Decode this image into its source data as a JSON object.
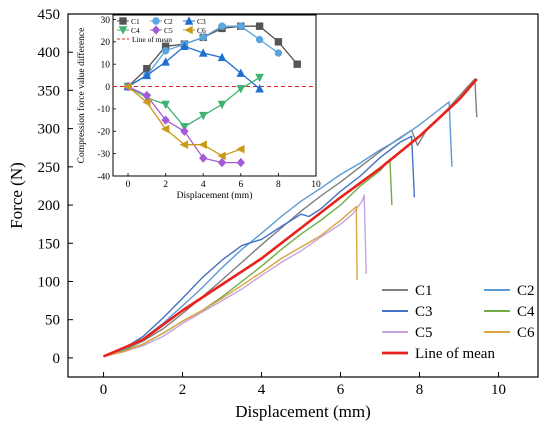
{
  "chart_data": [
    {
      "type": "line",
      "xlabel": "Displacement (mm)",
      "ylabel": "Force (N)",
      "xlim": [
        -0.9,
        11
      ],
      "ylim": [
        -25,
        450
      ],
      "xticks": [
        0,
        2,
        4,
        6,
        8,
        10
      ],
      "yticks": [
        0,
        50,
        100,
        150,
        200,
        250,
        300,
        350,
        400,
        450
      ],
      "grid": false,
      "legend_position": "bottom-right",
      "series": [
        {
          "name": "C1",
          "color": "#808080",
          "points": [
            [
              0,
              2
            ],
            [
              0.5,
              10
            ],
            [
              1,
              22
            ],
            [
              1.5,
              38
            ],
            [
              2,
              58
            ],
            [
              2.5,
              80
            ],
            [
              3,
              102
            ],
            [
              3.5,
              125
            ],
            [
              4,
              148
            ],
            [
              4.5,
              170
            ],
            [
              5,
              192
            ],
            [
              5.5,
              212
            ],
            [
              6,
              230
            ],
            [
              6.5,
              250
            ],
            [
              7,
              270
            ],
            [
              7.5,
              288
            ],
            [
              7.8,
              298
            ],
            [
              7.95,
              278
            ],
            [
              8.2,
              300
            ],
            [
              8.7,
              325
            ],
            [
              9.1,
              348
            ],
            [
              9.4,
              365
            ],
            [
              9.45,
              315
            ]
          ]
        },
        {
          "name": "C2",
          "color": "#5b9bd5",
          "points": [
            [
              0,
              2
            ],
            [
              0.5,
              11
            ],
            [
              1,
              25
            ],
            [
              1.5,
              45
            ],
            [
              2,
              68
            ],
            [
              2.5,
              92
            ],
            [
              3,
              118
            ],
            [
              3.5,
              142
            ],
            [
              4,
              163
            ],
            [
              4.5,
              185
            ],
            [
              5,
              205
            ],
            [
              5.5,
              222
            ],
            [
              6,
              240
            ],
            [
              6.5,
              255
            ],
            [
              7,
              272
            ],
            [
              7.5,
              287
            ],
            [
              8,
              305
            ],
            [
              8.5,
              325
            ],
            [
              8.75,
              335
            ],
            [
              8.82,
              250
            ]
          ]
        },
        {
          "name": "C3",
          "color": "#4472c4",
          "points": [
            [
              0,
              2
            ],
            [
              0.5,
              12
            ],
            [
              1,
              28
            ],
            [
              1.5,
              52
            ],
            [
              2,
              78
            ],
            [
              2.5,
              105
            ],
            [
              3,
              128
            ],
            [
              3.5,
              147
            ],
            [
              3.8,
              152
            ],
            [
              4,
              155
            ],
            [
              4.5,
              172
            ],
            [
              5,
              188
            ],
            [
              5.2,
              185
            ],
            [
              5.5,
              195
            ],
            [
              6,
              218
            ],
            [
              6.5,
              238
            ],
            [
              7,
              262
            ],
            [
              7.5,
              282
            ],
            [
              7.8,
              290
            ],
            [
              7.87,
              210
            ]
          ]
        },
        {
          "name": "C4",
          "color": "#70ad47",
          "points": [
            [
              0,
              2
            ],
            [
              0.5,
              9
            ],
            [
              1,
              18
            ],
            [
              1.5,
              32
            ],
            [
              2,
              48
            ],
            [
              2.5,
              62
            ],
            [
              3,
              80
            ],
            [
              3.5,
              100
            ],
            [
              4,
              120
            ],
            [
              4.5,
              142
            ],
            [
              5,
              162
            ],
            [
              5.5,
              180
            ],
            [
              6,
              200
            ],
            [
              6.5,
              225
            ],
            [
              7,
              245
            ],
            [
              7.25,
              260
            ],
            [
              7.3,
              200
            ]
          ]
        },
        {
          "name": "C5",
          "color": "#c5a3e0",
          "points": [
            [
              0,
              2
            ],
            [
              0.5,
              8
            ],
            [
              1,
              16
            ],
            [
              1.5,
              28
            ],
            [
              2,
              45
            ],
            [
              2.5,
              60
            ],
            [
              3,
              75
            ],
            [
              3.5,
              90
            ],
            [
              4,
              108
            ],
            [
              4.5,
              125
            ],
            [
              5,
              140
            ],
            [
              5.5,
              158
            ],
            [
              6,
              175
            ],
            [
              6.3,
              188
            ],
            [
              6.55,
              205
            ],
            [
              6.6,
              213
            ],
            [
              6.65,
              110
            ]
          ]
        },
        {
          "name": "C6",
          "color": "#d9a441",
          "points": [
            [
              0,
              2
            ],
            [
              0.5,
              8
            ],
            [
              1,
              18
            ],
            [
              1.5,
              32
            ],
            [
              2,
              48
            ],
            [
              2.5,
              62
            ],
            [
              3,
              78
            ],
            [
              3.5,
              95
            ],
            [
              4,
              112
            ],
            [
              4.5,
              130
            ],
            [
              5,
              145
            ],
            [
              5.5,
              160
            ],
            [
              6,
              180
            ],
            [
              6.4,
              198
            ],
            [
              6.42,
              102
            ]
          ]
        },
        {
          "name": "Line of mean",
          "color": "#e8221c",
          "points": [
            [
              0,
              2
            ],
            [
              1,
              24
            ],
            [
              2,
              62
            ],
            [
              3,
              96
            ],
            [
              4,
              130
            ],
            [
              5,
              170
            ],
            [
              6,
              210
            ],
            [
              7,
              248
            ],
            [
              8,
              290
            ],
            [
              9,
              338
            ],
            [
              9.45,
              365
            ]
          ]
        }
      ]
    },
    {
      "type": "line",
      "xlabel": "Displacement (mm)",
      "ylabel": "Compression force value difference",
      "xlim": [
        -0.8,
        10
      ],
      "ylim": [
        -40,
        32
      ],
      "xticks": [
        0,
        2,
        4,
        6,
        8,
        10
      ],
      "yticks": [
        -40,
        -30,
        -20,
        -10,
        0,
        10,
        20,
        30
      ],
      "grid": false,
      "legend_position": "top-left",
      "mean_line": {
        "name": "Line of mean",
        "y": 0,
        "color": "#e8221c",
        "style": "dashed"
      },
      "series": [
        {
          "name": "C1",
          "color": "#555555",
          "marker": "square",
          "points": [
            [
              0,
              0
            ],
            [
              1,
              8
            ],
            [
              2,
              18
            ],
            [
              3,
              19
            ],
            [
              4,
              22
            ],
            [
              5,
              26
            ],
            [
              6,
              27
            ],
            [
              7,
              27
            ],
            [
              8,
              20
            ],
            [
              9,
              10
            ]
          ]
        },
        {
          "name": "C2",
          "color": "#5aa5de",
          "marker": "circle",
          "points": [
            [
              0,
              0
            ],
            [
              1,
              5
            ],
            [
              2,
              16
            ],
            [
              3,
              19
            ],
            [
              4,
              22
            ],
            [
              5,
              27
            ],
            [
              6,
              27
            ],
            [
              7,
              21
            ],
            [
              8,
              15
            ]
          ]
        },
        {
          "name": "C3",
          "color": "#1f6fd1",
          "marker": "triangle-up",
          "points": [
            [
              0,
              0
            ],
            [
              1,
              5
            ],
            [
              2,
              11
            ],
            [
              3,
              18
            ],
            [
              4,
              15
            ],
            [
              5,
              13
            ],
            [
              6,
              6
            ],
            [
              7,
              -1
            ]
          ]
        },
        {
          "name": "C4",
          "color": "#3cb371",
          "marker": "triangle-down",
          "points": [
            [
              0,
              0
            ],
            [
              1,
              -5
            ],
            [
              2,
              -8
            ],
            [
              3,
              -18
            ],
            [
              4,
              -13
            ],
            [
              5,
              -8
            ],
            [
              6,
              -1
            ],
            [
              7,
              4
            ]
          ]
        },
        {
          "name": "C5",
          "color": "#a45cd6",
          "marker": "diamond",
          "points": [
            [
              0,
              0
            ],
            [
              1,
              -4
            ],
            [
              2,
              -15
            ],
            [
              3,
              -20
            ],
            [
              4,
              -32
            ],
            [
              5,
              -34
            ],
            [
              6,
              -34
            ]
          ]
        },
        {
          "name": "C6",
          "color": "#cc9a18",
          "marker": "triangle-left",
          "points": [
            [
              0,
              0
            ],
            [
              1,
              -7
            ],
            [
              2,
              -19
            ],
            [
              3,
              -26
            ],
            [
              4,
              -26
            ],
            [
              5,
              -31
            ],
            [
              6,
              -28
            ]
          ]
        }
      ]
    }
  ]
}
